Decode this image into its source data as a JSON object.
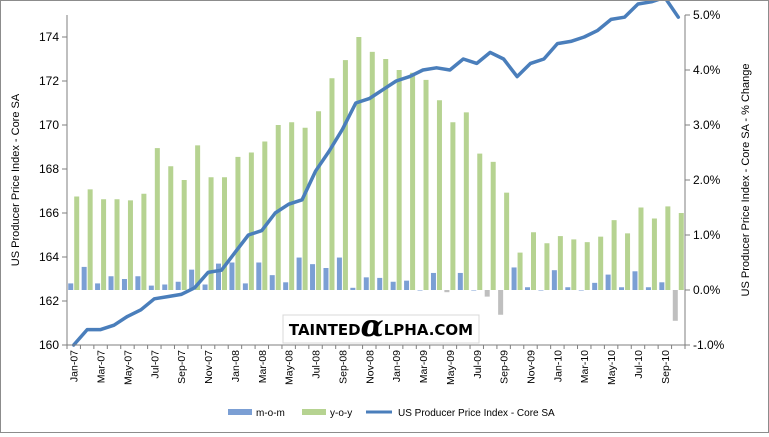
{
  "chart_data": {
    "type": "bar+line",
    "left_axis": {
      "title": "US Producer Price Index - Core SA",
      "min": 160,
      "max": 175,
      "ticks": [
        160,
        162,
        164,
        166,
        168,
        170,
        172,
        174
      ],
      "tick_labels": [
        "160",
        "162",
        "164",
        "166",
        "168",
        "170",
        "172",
        "174"
      ]
    },
    "right_axis": {
      "title": "US Producer Price Index - Core SA - % Change",
      "min": -1.0,
      "max": 5.0,
      "ticks": [
        -1,
        0,
        1,
        2,
        3,
        4,
        5
      ],
      "tick_labels": [
        "-1.0%",
        "0.0%",
        "1.0%",
        "2.0%",
        "3.0%",
        "4.0%",
        "5.0%"
      ]
    },
    "x_labels": [
      "Jan-07",
      "Mar-07",
      "May-07",
      "Jul-07",
      "Sep-07",
      "Nov-07",
      "Jan-08",
      "Mar-08",
      "May-08",
      "Jul-08",
      "Sep-08",
      "Nov-08",
      "Jan-09",
      "Mar-09",
      "May-09",
      "Jul-09",
      "Sep-09",
      "Nov-09",
      "Jan-10",
      "Mar-10",
      "May-10",
      "Jul-10",
      "Sep-10"
    ],
    "series": [
      {
        "name": "m-o-m",
        "type": "bar",
        "axis": "right",
        "color": "#7b9fd4",
        "values": [
          0.12,
          0.42,
          0.12,
          0.25,
          0.2,
          0.25,
          0.08,
          0.1,
          0.15,
          0.37,
          0.1,
          0.48,
          0.5,
          0.12,
          0.5,
          0.27,
          0.14,
          0.59,
          0.47,
          0.4,
          0.59,
          0.04,
          0.23,
          0.22,
          0.15,
          0.17,
          0.0,
          0.31,
          -0.04,
          0.31,
          0.0,
          -0.12,
          -0.45,
          0.41,
          0.05,
          0.0,
          0.36,
          0.05,
          0.0,
          0.13,
          0.28,
          0.05,
          0.34,
          0.05,
          0.14,
          -0.56
        ]
      },
      {
        "name": "y-o-y",
        "type": "bar",
        "axis": "right",
        "color": "#b6d391",
        "values": [
          1.7,
          1.83,
          1.65,
          1.65,
          1.63,
          1.75,
          2.58,
          2.25,
          2.0,
          2.63,
          2.05,
          2.05,
          2.42,
          2.5,
          2.7,
          3.0,
          3.05,
          2.95,
          3.25,
          3.85,
          4.18,
          4.6,
          4.33,
          4.2,
          4.0,
          3.95,
          3.82,
          3.45,
          3.05,
          3.23,
          2.48,
          2.33,
          1.77,
          0.68,
          1.05,
          0.85,
          0.98,
          0.92,
          0.87,
          0.97,
          1.27,
          1.03,
          1.5,
          1.3,
          1.52,
          1.4
        ]
      },
      {
        "name": "US Producer Price Index - Core SA",
        "type": "line",
        "axis": "left",
        "color": "#4a7ebb",
        "values": [
          160.0,
          160.7,
          160.7,
          160.9,
          161.3,
          161.6,
          162.1,
          162.2,
          162.3,
          162.6,
          163.3,
          163.4,
          164.2,
          165.0,
          165.2,
          166.0,
          166.4,
          166.6,
          167.9,
          168.8,
          169.8,
          171.0,
          171.2,
          171.6,
          172.0,
          172.2,
          172.5,
          172.6,
          172.5,
          173.0,
          172.8,
          173.3,
          173.0,
          172.2,
          172.8,
          173.0,
          173.7,
          173.8,
          174.0,
          174.3,
          174.8,
          174.9,
          175.5,
          175.6,
          175.8,
          174.9
        ]
      }
    ],
    "legend": [
      "m-o-m",
      "y-o-y",
      "US Producer Price Index - Core SA"
    ],
    "legend_position": "bottom",
    "watermark": "TAINTEDALPHA.COM"
  }
}
